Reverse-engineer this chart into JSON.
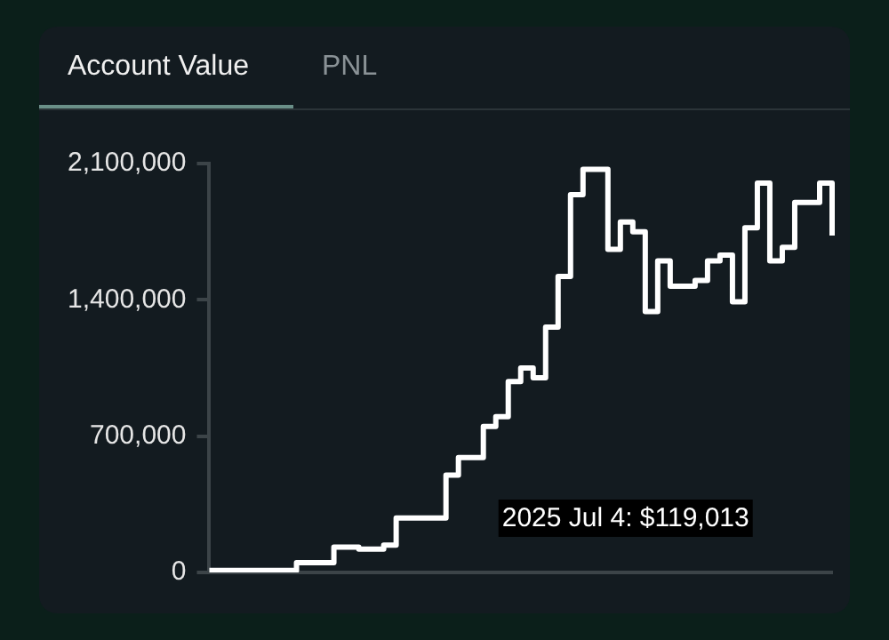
{
  "chart_data": {
    "type": "step",
    "categories": [
      null,
      null,
      null,
      null,
      null,
      null,
      null,
      null,
      null,
      null,
      null,
      null,
      null,
      null,
      null,
      null,
      null,
      null,
      null,
      null,
      null,
      null,
      null,
      null,
      null,
      null,
      null,
      null,
      null,
      null,
      null,
      null,
      null,
      null,
      null,
      null,
      null,
      null,
      null,
      null,
      null,
      null,
      null,
      null,
      null,
      null,
      null,
      null,
      null,
      null,
      null
    ],
    "series": [
      {
        "color": "#ffffff",
        "values": [
          10000,
          10000,
          10000,
          10000,
          10000,
          10000,
          10000,
          50000,
          50000,
          50000,
          130000,
          130000,
          120000,
          120000,
          140000,
          280000,
          280000,
          280000,
          280000,
          500000,
          590000,
          590000,
          750000,
          800000,
          980000,
          1050000,
          1000000,
          1260000,
          1520000,
          1940000,
          2070000,
          2070000,
          1660000,
          1800000,
          1750000,
          1340000,
          1600000,
          1470000,
          1470000,
          1500000,
          1600000,
          1630000,
          1390000,
          1770000,
          2000000,
          1600000,
          1670000,
          1900000,
          1900000,
          2000000,
          1730000
        ]
      }
    ],
    "ylim": [
      0,
      2100000
    ],
    "yticks": [
      0,
      {
        "value": 700000,
        "label": "700,000"
      },
      {
        "value": 1400000,
        "label": "1,400,000"
      },
      {
        "value": 2100000,
        "label": "2,100,000"
      }
    ],
    "grid": false,
    "legend": false,
    "marker": "none",
    "line_style": "solid",
    "annotations": [
      "Account Value",
      "PNL",
      "2025 Jul 4: $119,013"
    ]
  }
}
